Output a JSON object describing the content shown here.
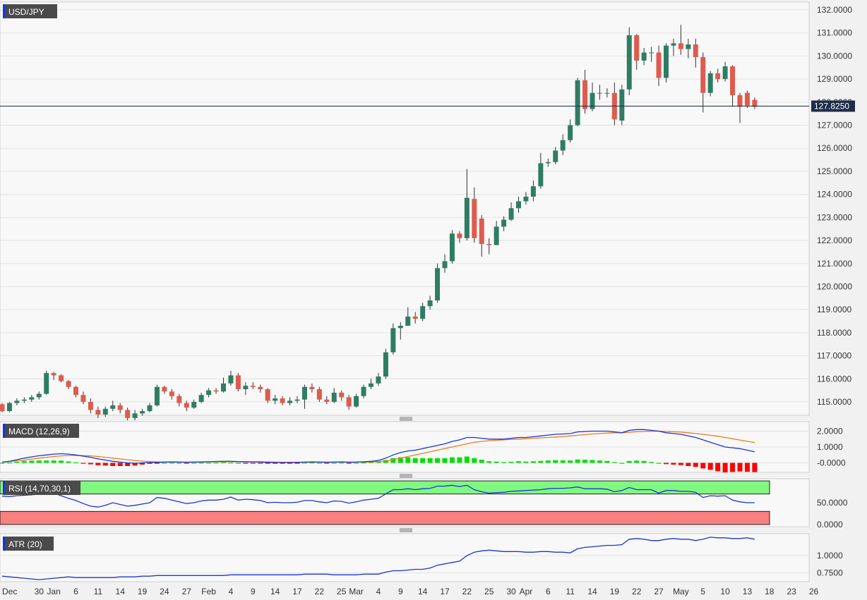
{
  "chart_data": {
    "type": "candlestick",
    "symbol": "USD/JPY",
    "current_price": 127.825,
    "current_price_label": "127.8250",
    "colors": {
      "up": "#2e7d63",
      "down": "#e05a4e",
      "macd_line": "#1a35d6",
      "signal_line": "#f07a1a",
      "hist_up": "#00e000",
      "hist_down": "#ff0000",
      "rsi_line": "#1a35d6",
      "atr_line": "#1a35d6",
      "rsi_overbought_band": "#80f880",
      "rsi_oversold_band": "#f88080"
    },
    "price_axis": {
      "ylim": [
        114.5,
        132.2
      ],
      "ticks": [
        "115.0000",
        "116.0000",
        "117.0000",
        "118.0000",
        "119.0000",
        "120.0000",
        "121.0000",
        "122.0000",
        "123.0000",
        "124.0000",
        "125.0000",
        "126.0000",
        "127.0000",
        "128.0000",
        "129.0000",
        "130.0000",
        "131.0000",
        "132.0000"
      ]
    },
    "x_ticks": [
      "Dec",
      "30",
      "Jan",
      "6",
      "11",
      "14",
      "19",
      "24",
      "27",
      "Feb",
      "4",
      "9",
      "14",
      "17",
      "22",
      "25",
      "Mar",
      "4",
      "9",
      "14",
      "17",
      "22",
      "25",
      "30",
      "Apr",
      "6",
      "11",
      "14",
      "19",
      "22",
      "27",
      "May",
      "5",
      "10",
      "13",
      "18",
      "23",
      "26"
    ],
    "candles": [
      [
        114.9,
        114.6,
        114.95,
        114.55
      ],
      [
        114.6,
        114.95,
        115.0,
        114.55
      ],
      [
        114.95,
        115.05,
        115.15,
        114.85
      ],
      [
        115.05,
        115.1,
        115.2,
        114.95
      ],
      [
        115.1,
        115.2,
        115.3,
        115.0
      ],
      [
        115.2,
        115.35,
        115.45,
        115.1
      ],
      [
        115.35,
        116.25,
        116.35,
        115.3
      ],
      [
        116.25,
        116.15,
        116.3,
        115.95
      ],
      [
        116.15,
        115.9,
        116.2,
        115.85
      ],
      [
        115.9,
        115.65,
        115.95,
        115.55
      ],
      [
        115.65,
        115.3,
        115.7,
        115.2
      ],
      [
        115.3,
        115.0,
        115.45,
        114.9
      ],
      [
        115.0,
        114.65,
        115.15,
        114.5
      ],
      [
        114.65,
        114.45,
        114.8,
        114.3
      ],
      [
        114.45,
        114.7,
        114.8,
        114.35
      ],
      [
        114.7,
        114.85,
        115.05,
        114.6
      ],
      [
        114.85,
        114.65,
        114.95,
        114.5
      ],
      [
        114.65,
        114.3,
        114.75,
        114.2
      ],
      [
        114.3,
        114.5,
        114.65,
        114.2
      ],
      [
        114.5,
        114.6,
        114.7,
        114.4
      ],
      [
        114.6,
        114.85,
        114.95,
        114.55
      ],
      [
        114.85,
        115.65,
        115.75,
        114.8
      ],
      [
        115.65,
        115.45,
        115.7,
        115.35
      ],
      [
        115.45,
        115.25,
        115.55,
        115.1
      ],
      [
        115.25,
        114.95,
        115.35,
        114.8
      ],
      [
        114.95,
        114.75,
        115.05,
        114.6
      ],
      [
        114.75,
        115.0,
        115.1,
        114.7
      ],
      [
        115.0,
        115.3,
        115.4,
        114.95
      ],
      [
        115.3,
        115.5,
        115.6,
        115.2
      ],
      [
        115.5,
        115.45,
        115.6,
        115.35
      ],
      [
        115.45,
        115.8,
        116.05,
        115.4
      ],
      [
        115.8,
        116.15,
        116.35,
        115.7
      ],
      [
        116.15,
        115.55,
        116.25,
        115.45
      ],
      [
        115.55,
        115.7,
        115.85,
        115.3
      ],
      [
        115.7,
        115.65,
        115.85,
        115.55
      ],
      [
        115.65,
        115.55,
        115.75,
        115.4
      ],
      [
        115.55,
        115.05,
        115.6,
        114.95
      ],
      [
        115.05,
        115.15,
        115.3,
        114.9
      ],
      [
        115.15,
        114.95,
        115.25,
        114.85
      ],
      [
        114.95,
        115.05,
        115.2,
        114.85
      ],
      [
        115.05,
        115.1,
        115.25,
        114.95
      ],
      [
        115.1,
        115.65,
        115.75,
        114.7
      ],
      [
        115.65,
        115.55,
        115.8,
        115.4
      ],
      [
        115.55,
        115.1,
        115.65,
        115.0
      ],
      [
        115.1,
        115.0,
        115.25,
        114.9
      ],
      [
        115.0,
        115.4,
        115.6,
        114.95
      ],
      [
        115.4,
        115.2,
        115.5,
        115.05
      ],
      [
        115.2,
        114.8,
        115.3,
        114.65
      ],
      [
        114.8,
        115.25,
        115.35,
        114.75
      ],
      [
        115.25,
        115.65,
        115.75,
        115.15
      ],
      [
        115.65,
        115.8,
        116.0,
        115.55
      ],
      [
        115.8,
        116.1,
        116.25,
        115.7
      ],
      [
        116.1,
        117.15,
        117.3,
        116.0
      ],
      [
        117.15,
        118.2,
        118.4,
        117.05
      ],
      [
        118.2,
        118.3,
        118.45,
        117.7
      ],
      [
        118.3,
        118.7,
        119.1,
        118.3
      ],
      [
        118.7,
        118.6,
        118.9,
        118.4
      ],
      [
        118.6,
        119.15,
        119.3,
        118.5
      ],
      [
        119.15,
        119.4,
        119.6,
        119.0
      ],
      [
        119.4,
        120.8,
        121.0,
        119.3
      ],
      [
        120.8,
        121.1,
        121.4,
        120.6
      ],
      [
        121.1,
        122.3,
        122.45,
        121.0
      ],
      [
        122.3,
        122.1,
        122.4,
        121.9
      ],
      [
        122.1,
        123.85,
        125.1,
        122.0
      ],
      [
        123.8,
        122.1,
        124.3,
        121.9
      ],
      [
        122.95,
        121.85,
        123.1,
        121.3
      ],
      [
        121.85,
        121.8,
        122.1,
        121.4
      ],
      [
        121.8,
        122.6,
        122.85,
        121.8
      ],
      [
        122.6,
        122.9,
        123.05,
        122.4
      ],
      [
        122.9,
        123.4,
        123.65,
        122.85
      ],
      [
        123.4,
        123.7,
        123.9,
        123.2
      ],
      [
        123.7,
        123.9,
        124.1,
        123.55
      ],
      [
        123.9,
        124.35,
        124.6,
        123.7
      ],
      [
        124.35,
        125.35,
        125.8,
        124.25
      ],
      [
        125.35,
        125.4,
        125.55,
        125.2
      ],
      [
        125.4,
        125.9,
        126.05,
        125.3
      ],
      [
        125.9,
        126.35,
        126.6,
        125.7
      ],
      [
        126.35,
        127.0,
        127.25,
        126.25
      ],
      [
        127.0,
        128.95,
        129.05,
        126.95
      ],
      [
        128.95,
        127.7,
        129.4,
        127.5
      ],
      [
        127.7,
        128.4,
        128.85,
        127.6
      ],
      [
        128.4,
        128.4,
        128.75,
        128.1
      ],
      [
        128.4,
        128.4,
        128.6,
        128.2
      ],
      [
        128.4,
        127.25,
        128.85,
        127.0
      ],
      [
        127.2,
        128.55,
        128.75,
        127.0
      ],
      [
        128.55,
        130.9,
        131.25,
        128.3
      ],
      [
        130.9,
        129.8,
        130.95,
        129.4
      ],
      [
        129.8,
        130.15,
        130.35,
        129.6
      ],
      [
        130.15,
        130.15,
        130.4,
        129.75
      ],
      [
        130.15,
        129.05,
        130.45,
        128.7
      ],
      [
        129.05,
        130.45,
        130.55,
        128.85
      ],
      [
        130.45,
        130.55,
        130.75,
        130.0
      ],
      [
        130.55,
        130.3,
        131.35,
        130.05
      ],
      [
        130.3,
        130.5,
        130.75,
        129.9
      ],
      [
        130.5,
        129.95,
        130.75,
        129.5
      ],
      [
        129.95,
        128.4,
        130.15,
        127.55
      ],
      [
        128.4,
        129.25,
        129.35,
        128.25
      ],
      [
        129.25,
        129.0,
        129.45,
        128.85
      ],
      [
        129.0,
        129.55,
        129.75,
        128.9
      ],
      [
        129.55,
        128.3,
        129.6,
        127.8
      ],
      [
        128.3,
        127.8,
        128.4,
        127.1
      ],
      [
        128.4,
        127.85,
        128.5,
        127.75
      ],
      [
        128.1,
        127.8,
        128.2,
        127.7
      ]
    ],
    "macd": {
      "label": "MACD (12,26,9)",
      "ylim": [
        -0.6,
        2.6
      ],
      "ticks": [
        "-0.0000",
        "1.0000",
        "2.0000"
      ],
      "macd_line": [
        0.05,
        0.1,
        0.2,
        0.3,
        0.38,
        0.45,
        0.5,
        0.55,
        0.58,
        0.55,
        0.5,
        0.42,
        0.35,
        0.25,
        0.18,
        0.1,
        0.05,
        0.0,
        -0.02,
        0.0,
        0.02,
        0.03,
        0.05,
        0.06,
        0.05,
        0.04,
        0.05,
        0.06,
        0.07,
        0.09,
        0.1,
        0.1,
        0.08,
        0.06,
        0.06,
        0.05,
        0.03,
        0.02,
        0.02,
        0.02,
        0.03,
        0.05,
        0.06,
        0.05,
        0.04,
        0.05,
        0.06,
        0.04,
        0.05,
        0.07,
        0.1,
        0.15,
        0.3,
        0.5,
        0.65,
        0.75,
        0.8,
        0.9,
        1.0,
        1.1,
        1.2,
        1.35,
        1.45,
        1.6,
        1.6,
        1.55,
        1.5,
        1.5,
        1.5,
        1.55,
        1.6,
        1.6,
        1.65,
        1.7,
        1.75,
        1.8,
        1.82,
        1.85,
        1.95,
        1.98,
        2.0,
        2.0,
        2.0,
        1.95,
        1.9,
        2.05,
        2.1,
        2.1,
        2.05,
        2.0,
        1.9,
        1.85,
        1.8,
        1.7,
        1.6,
        1.45,
        1.3,
        1.15,
        1.0,
        0.95,
        0.9,
        0.8,
        0.7
      ],
      "signal_line": [
        0.05,
        0.08,
        0.13,
        0.18,
        0.24,
        0.3,
        0.35,
        0.4,
        0.44,
        0.46,
        0.47,
        0.46,
        0.44,
        0.4,
        0.35,
        0.3,
        0.25,
        0.2,
        0.15,
        0.11,
        0.08,
        0.06,
        0.05,
        0.05,
        0.05,
        0.05,
        0.05,
        0.05,
        0.06,
        0.07,
        0.07,
        0.08,
        0.08,
        0.08,
        0.07,
        0.07,
        0.06,
        0.05,
        0.04,
        0.04,
        0.04,
        0.04,
        0.04,
        0.05,
        0.05,
        0.05,
        0.05,
        0.05,
        0.05,
        0.05,
        0.06,
        0.08,
        0.12,
        0.2,
        0.3,
        0.4,
        0.5,
        0.6,
        0.7,
        0.8,
        0.9,
        1.0,
        1.1,
        1.2,
        1.3,
        1.35,
        1.4,
        1.42,
        1.45,
        1.48,
        1.5,
        1.52,
        1.55,
        1.58,
        1.6,
        1.63,
        1.66,
        1.7,
        1.74,
        1.78,
        1.82,
        1.85,
        1.88,
        1.9,
        1.9,
        1.93,
        1.96,
        1.98,
        1.99,
        2.0,
        1.98,
        1.96,
        1.94,
        1.9,
        1.85,
        1.8,
        1.74,
        1.68,
        1.6,
        1.52,
        1.44,
        1.36,
        1.28
      ],
      "histogram": [
        0.0,
        0.02,
        0.07,
        0.12,
        0.14,
        0.15,
        0.15,
        0.15,
        0.14,
        0.09,
        0.03,
        -0.04,
        -0.09,
        -0.15,
        -0.17,
        -0.2,
        -0.2,
        -0.2,
        -0.17,
        -0.11,
        -0.06,
        -0.03,
        0.0,
        0.01,
        0.0,
        -0.01,
        0.0,
        0.01,
        0.01,
        0.02,
        0.03,
        0.02,
        0.0,
        -0.02,
        -0.01,
        -0.02,
        -0.03,
        -0.03,
        -0.02,
        -0.02,
        -0.01,
        0.01,
        0.02,
        0.0,
        -0.01,
        0.0,
        0.01,
        -0.01,
        0.0,
        0.02,
        0.04,
        0.07,
        0.18,
        0.3,
        0.35,
        0.35,
        0.3,
        0.3,
        0.3,
        0.3,
        0.3,
        0.35,
        0.35,
        0.4,
        0.3,
        0.2,
        0.1,
        0.08,
        0.05,
        0.07,
        0.1,
        0.08,
        0.1,
        0.12,
        0.15,
        0.17,
        0.16,
        0.15,
        0.21,
        0.2,
        0.18,
        0.15,
        0.12,
        0.05,
        0.0,
        0.12,
        0.14,
        0.12,
        0.06,
        0.0,
        -0.08,
        -0.11,
        -0.14,
        -0.2,
        -0.25,
        -0.35,
        -0.44,
        -0.53,
        -0.6,
        -0.57,
        -0.54,
        -0.56,
        -0.58
      ]
    },
    "rsi": {
      "label": "RSI (14,70,30,1)",
      "ylim": [
        -5,
        105
      ],
      "ticks": [
        "0.0000",
        "50.0000"
      ],
      "overbought": 70,
      "oversold": 30,
      "values": [
        65,
        64,
        66,
        67,
        68,
        70,
        76,
        72,
        66,
        60,
        55,
        48,
        42,
        40,
        44,
        50,
        46,
        42,
        44,
        47,
        50,
        62,
        60,
        56,
        52,
        48,
        50,
        54,
        56,
        56,
        58,
        63,
        56,
        58,
        57,
        55,
        50,
        51,
        50,
        50,
        51,
        55,
        55,
        52,
        50,
        54,
        53,
        49,
        52,
        56,
        58,
        60,
        70,
        80,
        80,
        82,
        80,
        82,
        83,
        88,
        88,
        90,
        87,
        90,
        80,
        75,
        72,
        73,
        74,
        76,
        77,
        78,
        79,
        80,
        82,
        83,
        83,
        84,
        86,
        82,
        82,
        82,
        81,
        75,
        78,
        85,
        80,
        80,
        80,
        72,
        78,
        78,
        76,
        76,
        74,
        62,
        66,
        65,
        66,
        56,
        52,
        50,
        50
      ]
    },
    "atr": {
      "label": "ATR (20)",
      "ylim": [
        0.62,
        1.32
      ],
      "ticks": [
        "0.7500",
        "1.0000"
      ],
      "values": [
        0.7,
        0.69,
        0.68,
        0.67,
        0.66,
        0.65,
        0.66,
        0.67,
        0.68,
        0.69,
        0.68,
        0.68,
        0.68,
        0.68,
        0.68,
        0.68,
        0.69,
        0.69,
        0.69,
        0.7,
        0.7,
        0.71,
        0.71,
        0.71,
        0.71,
        0.71,
        0.71,
        0.71,
        0.71,
        0.71,
        0.71,
        0.72,
        0.72,
        0.72,
        0.72,
        0.72,
        0.72,
        0.72,
        0.72,
        0.72,
        0.72,
        0.73,
        0.73,
        0.73,
        0.73,
        0.72,
        0.72,
        0.72,
        0.72,
        0.73,
        0.73,
        0.73,
        0.76,
        0.78,
        0.78,
        0.79,
        0.8,
        0.8,
        0.82,
        0.86,
        0.88,
        0.9,
        0.92,
        1.0,
        1.05,
        1.07,
        1.08,
        1.07,
        1.06,
        1.06,
        1.06,
        1.05,
        1.05,
        1.06,
        1.06,
        1.05,
        1.05,
        1.04,
        1.1,
        1.12,
        1.13,
        1.14,
        1.15,
        1.15,
        1.16,
        1.24,
        1.25,
        1.24,
        1.22,
        1.22,
        1.24,
        1.25,
        1.24,
        1.24,
        1.22,
        1.24,
        1.27,
        1.26,
        1.26,
        1.25,
        1.25,
        1.26,
        1.24
      ]
    }
  }
}
